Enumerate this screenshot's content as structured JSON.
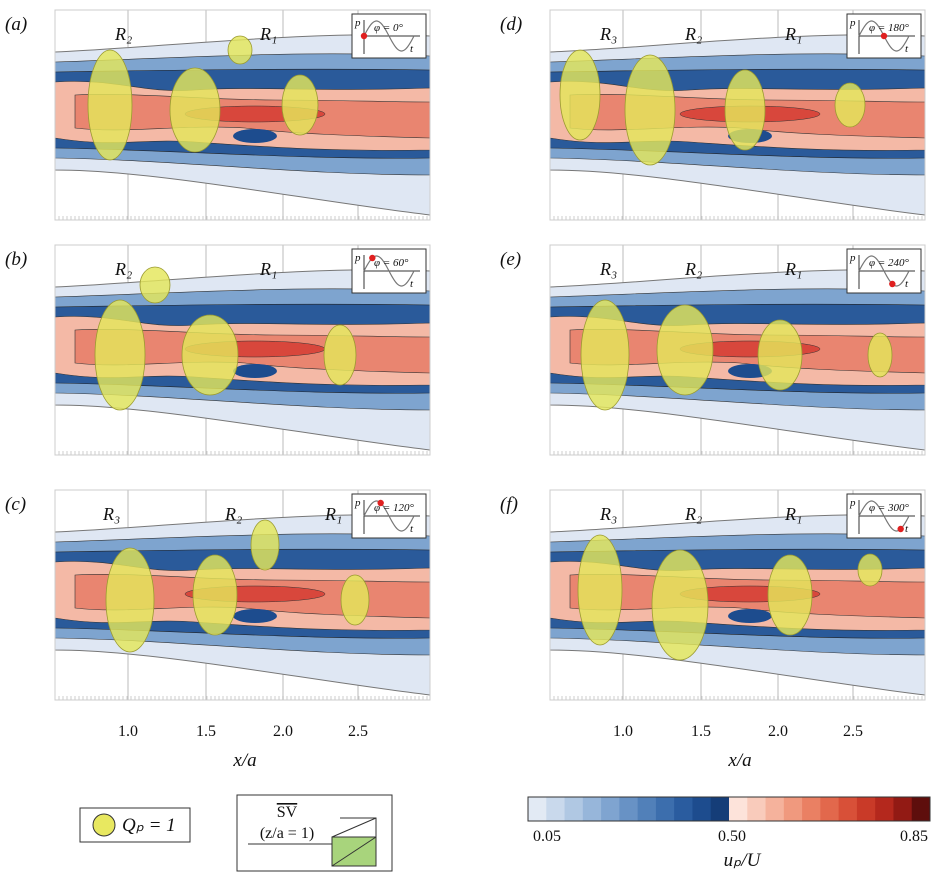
{
  "panels": [
    {
      "label": "(a)",
      "phase": "φ = 0°",
      "regions": [
        "R₂",
        "R₁"
      ]
    },
    {
      "label": "(b)",
      "phase": "φ = 60°",
      "regions": [
        "R₂",
        "R₁"
      ]
    },
    {
      "label": "(c)",
      "phase": "φ = 120°",
      "regions": [
        "R₃",
        "R₂",
        "R₁"
      ]
    },
    {
      "label": "(d)",
      "phase": "φ = 180°",
      "regions": [
        "R₃",
        "R₂",
        "R₁"
      ]
    },
    {
      "label": "(e)",
      "phase": "φ = 240°",
      "regions": [
        "R₃",
        "R₂",
        "R₁"
      ]
    },
    {
      "label": "(f)",
      "phase": "φ = 300°",
      "regions": [
        "R₃",
        "R₂",
        "R₁"
      ]
    }
  ],
  "inset": {
    "y_symbol": "p",
    "x_symbol": "t"
  },
  "x_axis": {
    "left_label": "x/a",
    "right_label": "x/a",
    "left_ticks": [
      "1.0",
      "1.5",
      "2.0",
      "2.5"
    ],
    "right_ticks": [
      "1.0",
      "1.5",
      "2.0",
      "2.5"
    ]
  },
  "legend": {
    "isosurface": "Qₚ = 1",
    "view": "SV",
    "view_note": "(z/a = 1)"
  },
  "colorbar": {
    "label": "uₚ/U",
    "ticks": [
      "0.05",
      "0.50",
      "0.85"
    ]
  }
}
